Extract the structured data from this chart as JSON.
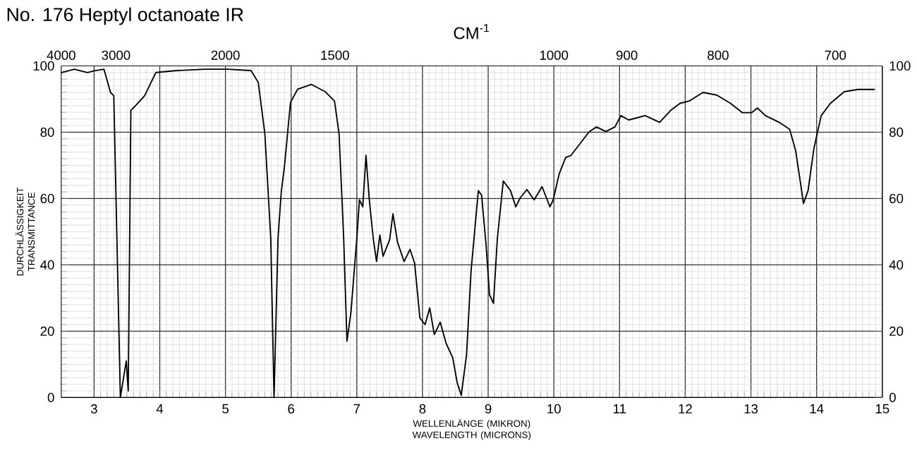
{
  "chart_data": {
    "type": "line",
    "title": "No. 176 Heptyl octanoate IR",
    "xlabel": "WELLENLÄNGE (MIKRON) WAVELENGTH (MICRONS)",
    "ylabel": "DURCHLÄSSIGKEIT TRANSMITTANCE",
    "color": "#000000",
    "grid": true,
    "x": [
      2.5,
      2.7,
      2.9,
      3.0,
      3.15,
      3.25,
      3.3,
      3.4,
      3.49,
      3.52,
      3.56,
      3.63,
      3.77,
      3.94,
      4.26,
      4.69,
      5.04,
      5.39,
      5.5,
      5.6,
      5.69,
      5.74,
      5.8,
      5.85,
      5.9,
      5.99,
      6.1,
      6.31,
      6.52,
      6.66,
      6.73,
      6.8,
      6.85,
      6.91,
      7.0,
      7.04,
      7.09,
      7.14,
      7.19,
      7.25,
      7.3,
      7.35,
      7.4,
      7.5,
      7.55,
      7.62,
      7.72,
      7.81,
      7.88,
      7.96,
      8.04,
      8.11,
      8.18,
      8.27,
      8.36,
      8.46,
      8.53,
      8.59,
      8.67,
      8.74,
      8.85,
      8.9,
      8.97,
      9.02,
      9.08,
      9.14,
      9.23,
      9.34,
      9.42,
      9.49,
      9.59,
      9.7,
      9.82,
      9.94,
      9.99,
      10.08,
      10.18,
      10.26,
      10.4,
      10.54,
      10.65,
      10.79,
      10.93,
      11.02,
      11.14,
      11.39,
      11.61,
      11.78,
      11.92,
      12.06,
      12.27,
      12.48,
      12.69,
      12.87,
      13.01,
      13.1,
      13.22,
      13.43,
      13.59,
      13.68,
      13.75,
      13.8,
      13.87,
      13.96,
      14.07,
      14.21,
      14.42,
      14.63,
      14.88
    ],
    "values": [
      98,
      99,
      98,
      98.5,
      99,
      92,
      91,
      0,
      11,
      2,
      86.6,
      88,
      91,
      98,
      98.6,
      99,
      99,
      98.6,
      95,
      79.5,
      48,
      0,
      48,
      62,
      70,
      89,
      93,
      94.4,
      92.2,
      89.4,
      79.5,
      48,
      17,
      25.6,
      48,
      59.6,
      57.5,
      73,
      59.6,
      48,
      41,
      49,
      42.6,
      47.6,
      55.4,
      46.8,
      41,
      44.7,
      40.5,
      24,
      22,
      27,
      19,
      22.7,
      16.3,
      12,
      4.3,
      0.7,
      12.8,
      38.3,
      62.4,
      61,
      45.4,
      31,
      28.4,
      48,
      65.3,
      62.4,
      57.5,
      60.3,
      62.7,
      59.6,
      63.6,
      57.5,
      59.6,
      67.4,
      72.4,
      73,
      76.6,
      80.2,
      81.6,
      80.2,
      81.6,
      85,
      83.7,
      85,
      83,
      86.6,
      88.7,
      89.4,
      92,
      91.2,
      88.7,
      85.9,
      85.9,
      87.3,
      85,
      83,
      80.9,
      74.5,
      65.3,
      58.5,
      62.4,
      75.2,
      85,
      88.7,
      92.2,
      92.9,
      92.9
    ],
    "xlim": [
      2.5,
      15
    ],
    "xticks": [
      3,
      4,
      5,
      6,
      7,
      8,
      9,
      10,
      11,
      12,
      13,
      14,
      15
    ],
    "ylim": [
      0,
      100
    ],
    "yticks": [
      0,
      20,
      40,
      60,
      80,
      100
    ],
    "y2lim": [
      0,
      100
    ],
    "y2ticks": [
      0,
      20,
      40,
      60,
      80,
      100
    ],
    "annotations": [
      "CM$^{-1}$",
      "4000",
      "3000",
      "2000",
      "1500",
      "1000",
      "900",
      "800",
      "700"
    ]
  }
}
